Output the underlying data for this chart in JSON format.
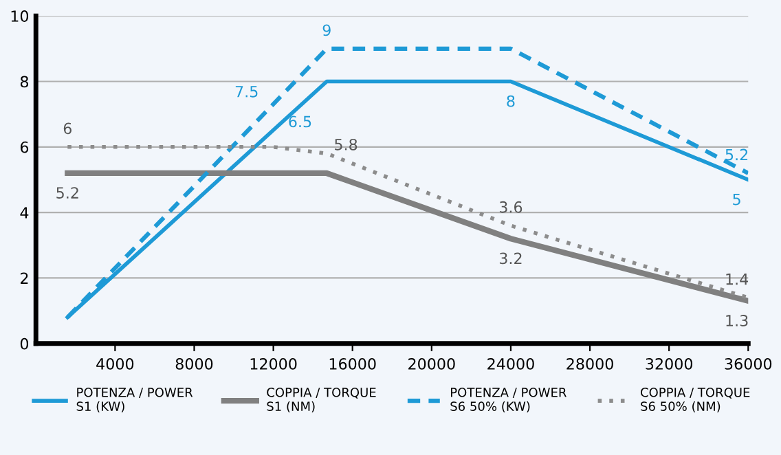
{
  "chart_data": {
    "type": "line",
    "series": [
      {
        "name": "POTENZA / POWER\nS1 (KW)",
        "color": "#1e9ad6",
        "line_style": "solid",
        "x": [
          1600,
          14700,
          24000,
          36000
        ],
        "values": [
          0.8,
          8,
          8,
          5
        ],
        "value_labels": [
          null,
          null,
          "8",
          "5"
        ]
      },
      {
        "name": "COPPIA / TORQUE\nS1 (NM)",
        "color": "#808080",
        "line_style": "solid",
        "x": [
          1600,
          14700,
          24000,
          36000
        ],
        "values": [
          5.2,
          5.2,
          3.2,
          1.3
        ],
        "value_labels": [
          "5.2",
          null,
          "3.2",
          "1.3"
        ]
      },
      {
        "name": "POTENZA / POWER\nS6 50% (KW)",
        "color": "#1e9ad6",
        "line_style": "dashed",
        "x": [
          1600,
          14700,
          24000,
          36000
        ],
        "values": [
          0.8,
          9,
          9,
          5.2
        ],
        "value_labels": [
          null,
          "9",
          null,
          "5.2"
        ]
      },
      {
        "name": "COPPIA / TORQUE\nS6 50% (NM)",
        "color": "#8c8c8c",
        "line_style": "dotted",
        "x": [
          1600,
          12000,
          14700,
          24000,
          36000
        ],
        "values": [
          6,
          6,
          5.8,
          3.6,
          1.4
        ],
        "value_labels": [
          "6",
          null,
          "5.8",
          "3.6",
          "1.4"
        ]
      }
    ],
    "annotations": [
      {
        "text": "7.5",
        "x": 12000,
        "y": 7.3
      },
      {
        "text": "6.5",
        "x": 12000,
        "y": 6.5
      }
    ],
    "xlim": [
      0,
      36000
    ],
    "xticks": [
      4000,
      8000,
      12000,
      16000,
      20000,
      24000,
      28000,
      32000,
      36000
    ],
    "ylim": [
      0,
      10
    ],
    "yticks": [
      0,
      2,
      4,
      6,
      8,
      10
    ],
    "grid": "y",
    "legend": "bottom"
  }
}
